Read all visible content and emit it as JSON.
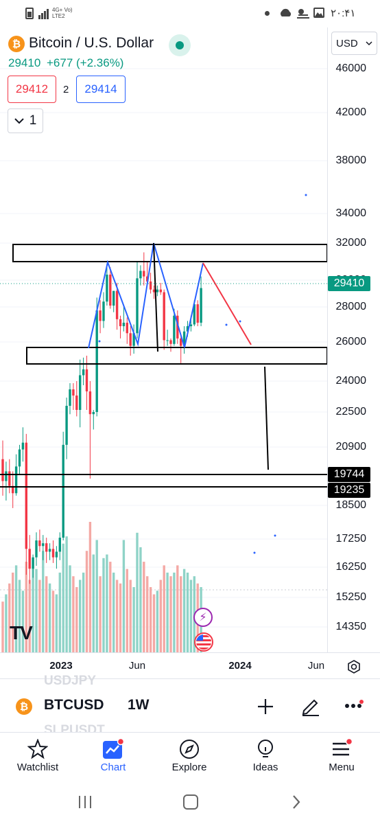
{
  "status_bar": {
    "time": "۲۰:۴۱",
    "network": "4G+ Vo) LTE2"
  },
  "header": {
    "symbol_title": "Bitcoin / U.S. Dollar",
    "last_price": "29410",
    "change": "+677 (+2.36%)",
    "currency": "USD",
    "sell_price": "29412",
    "spread": "2",
    "buy_price": "29414",
    "interval_count": "1",
    "market_status_color": "#089981"
  },
  "price_axis": {
    "ticks": [
      "46000",
      "42000",
      "38000",
      "34000",
      "32000",
      "30000",
      "28000",
      "26000",
      "24000",
      "22500",
      "20900",
      "18500",
      "17250",
      "16250",
      "15250",
      "14350"
    ],
    "current_price_label": "29410",
    "level_label_1": "19744",
    "level_label_2": "19235"
  },
  "time_axis": {
    "labels": [
      "2023",
      "Jun",
      "2024",
      "Jun"
    ]
  },
  "chart_data": {
    "type": "candlestick",
    "symbol": "BTCUSD",
    "interval": "1W",
    "candles": [
      [
        20400,
        21200,
        18900,
        19500
      ],
      [
        19500,
        20300,
        18700,
        19900
      ],
      [
        19900,
        20400,
        19000,
        19300
      ],
      [
        19300,
        19900,
        18400,
        19000
      ],
      [
        19000,
        20600,
        18900,
        20100
      ],
      [
        20100,
        21000,
        19800,
        20800
      ],
      [
        20800,
        21800,
        20300,
        21100
      ],
      [
        21100,
        21500,
        16000,
        16900
      ],
      [
        16900,
        17400,
        15700,
        16200
      ],
      [
        16200,
        16700,
        15900,
        16600
      ],
      [
        16600,
        17500,
        16300,
        17200
      ],
      [
        17200,
        17600,
        16800,
        17000
      ],
      [
        17000,
        17400,
        16500,
        17100
      ],
      [
        17100,
        17300,
        16400,
        16800
      ],
      [
        16800,
        17100,
        16500,
        16900
      ],
      [
        16900,
        17200,
        16400,
        16600
      ],
      [
        16600,
        17000,
        16200,
        16800
      ],
      [
        16800,
        17500,
        16500,
        17300
      ],
      [
        17300,
        21600,
        17200,
        21000
      ],
      [
        21000,
        23200,
        20400,
        22800
      ],
      [
        22800,
        23900,
        22400,
        23600
      ],
      [
        23600,
        23900,
        22600,
        23300
      ],
      [
        23300,
        24000,
        22300,
        22600
      ],
      [
        22600,
        25100,
        21800,
        24300
      ],
      [
        24300,
        25200,
        23800,
        24600
      ],
      [
        24600,
        25300,
        22600,
        23500
      ],
      [
        23500,
        24000,
        19600,
        22400
      ],
      [
        22400,
        22600,
        21700,
        22500
      ],
      [
        22500,
        28700,
        22300,
        27800
      ],
      [
        27800,
        28500,
        26500,
        27200
      ],
      [
        27200,
        29100,
        26800,
        28400
      ],
      [
        28400,
        30900,
        28100,
        30300
      ],
      [
        30300,
        30700,
        27900,
        28100
      ],
      [
        28100,
        29200,
        27700,
        29200
      ],
      [
        29200,
        29800,
        26700,
        27300
      ],
      [
        27300,
        27500,
        26200,
        26900
      ],
      [
        26900,
        28000,
        26600,
        27100
      ],
      [
        27100,
        27400,
        25900,
        26500
      ],
      [
        26500,
        26900,
        25300,
        25800
      ],
      [
        25800,
        27000,
        25400,
        26500
      ],
      [
        26500,
        31000,
        26200,
        30100
      ],
      [
        30100,
        30800,
        29600,
        30500
      ],
      [
        30500,
        31500,
        29600,
        30200
      ],
      [
        30200,
        31000,
        29800,
        29900
      ],
      [
        29900,
        30400,
        29000,
        29300
      ],
      [
        29300,
        29600,
        28600,
        29100
      ],
      [
        29100,
        29600,
        28800,
        29300
      ],
      [
        29300,
        29800,
        28900,
        29100
      ],
      [
        29100,
        29300,
        25600,
        26100
      ],
      [
        26100,
        26700,
        25800,
        26100
      ],
      [
        26100,
        26200,
        25500,
        25900
      ],
      [
        25900,
        27900,
        25800,
        27500
      ],
      [
        27500,
        27800,
        25900,
        26200
      ],
      [
        26200,
        26400,
        24900,
        25800
      ],
      [
        25800,
        26900,
        25400,
        26600
      ],
      [
        26600,
        27200,
        26300,
        26900
      ],
      [
        26900,
        27500,
        26600,
        27000
      ],
      [
        27000,
        28500,
        26900,
        28200
      ],
      [
        28200,
        28500,
        26900,
        27100
      ],
      [
        27100,
        30200,
        26900,
        29410
      ]
    ],
    "volume": [
      14,
      16,
      19,
      22,
      24,
      20,
      17,
      25,
      20,
      26,
      23,
      20,
      28,
      21,
      19,
      17,
      16,
      22,
      30,
      32,
      24,
      21,
      18,
      20,
      22,
      28,
      36,
      27,
      31,
      21,
      26,
      27,
      25,
      22,
      20,
      19,
      31,
      23,
      20,
      18,
      33,
      29,
      25,
      21,
      18,
      16,
      17,
      20,
      24,
      22,
      21,
      22,
      24,
      21,
      23,
      22,
      20,
      21,
      19,
      18
    ],
    "horizontal_levels": [
      19744,
      19235
    ],
    "price_range": [
      14000,
      47500
    ]
  },
  "volume_color_up": "#8fd3c7",
  "volume_color_down": "#f4a9a5",
  "candle_color_up": "#089981",
  "candle_color_down": "#f23645",
  "bottom_symbol": {
    "symbol": "BTCUSD",
    "interval": "1W",
    "ghost_above": "USDJPY",
    "ghost_below": "SLPUSDT"
  },
  "nav": {
    "items": [
      {
        "label": "Watchlist",
        "icon": "star-icon"
      },
      {
        "label": "Chart",
        "icon": "chart-icon"
      },
      {
        "label": "Explore",
        "icon": "compass-icon"
      },
      {
        "label": "Ideas",
        "icon": "lightbulb-icon"
      },
      {
        "label": "Menu",
        "icon": "hamburger-icon"
      }
    ]
  },
  "watermark": "TV"
}
